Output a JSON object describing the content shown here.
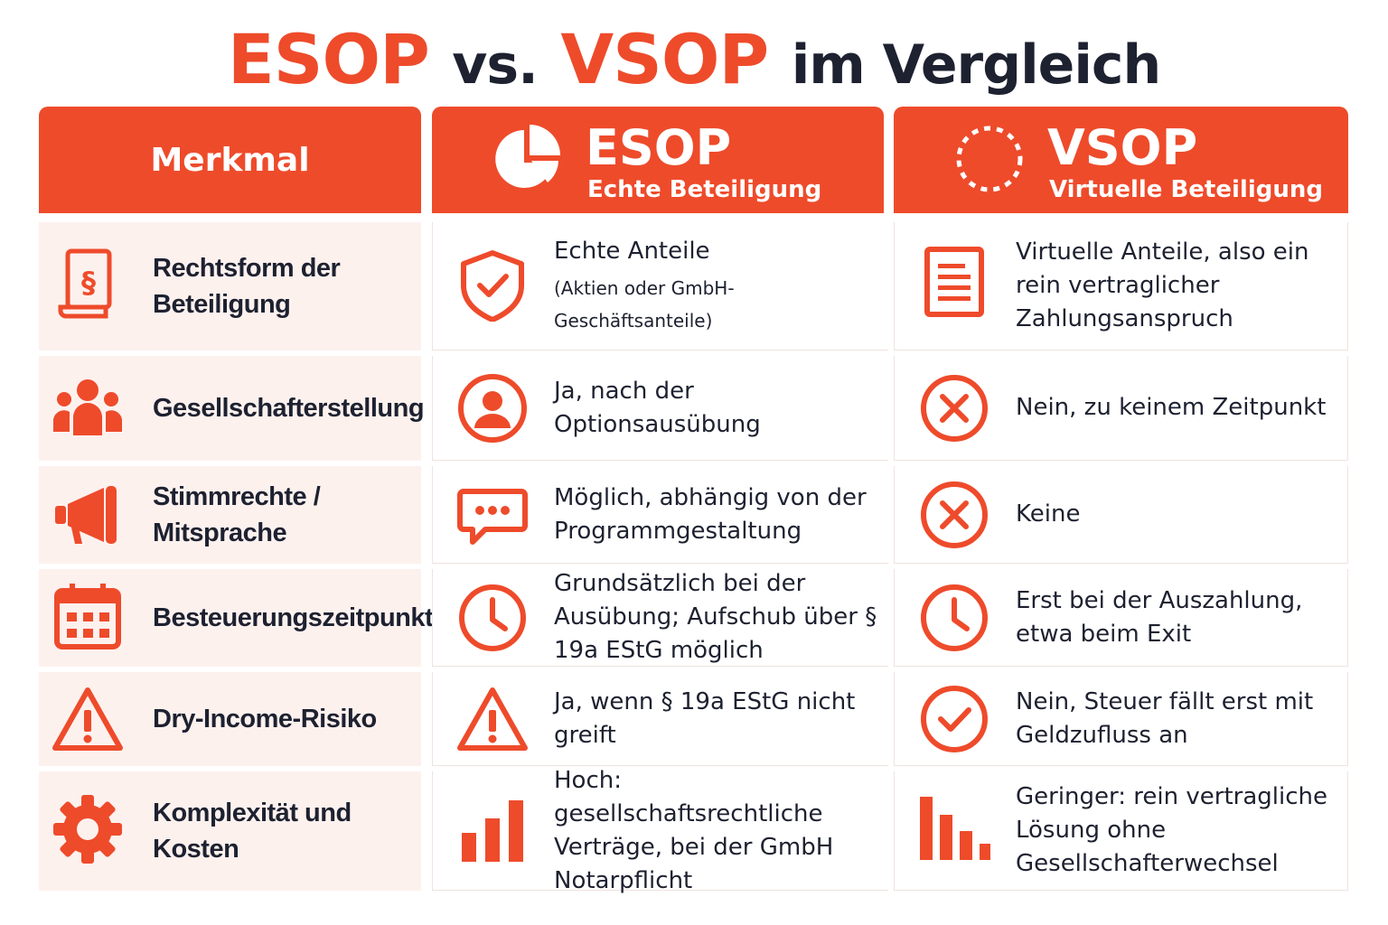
{
  "title": {
    "part1": "ESOP",
    "part2": "vs.",
    "part3": "VSOP",
    "part4": "im Vergleich"
  },
  "colors": {
    "accent": "#ee4b2b",
    "dark": "#1d2130",
    "row_tint": "#fdf1ee"
  },
  "header": {
    "merkmal": "Merkmal",
    "esop": {
      "name": "ESOP",
      "subtitle": "Echte Beteiligung",
      "icon": "pie-chart-icon"
    },
    "vsop": {
      "name": "VSOP",
      "subtitle": "Virtuelle Beteiligung",
      "icon": "dashed-circle-icon"
    }
  },
  "rows": [
    {
      "merkmal": "Rechtsform der Beteiligung",
      "merkmal_icon": "paragraph-document-icon",
      "esop": {
        "text": "Echte Anteile",
        "sub": "(Aktien oder GmbH-Geschäftsanteile)",
        "icon": "shield-check-icon"
      },
      "vsop": {
        "text": "Virtuelle Anteile, also ein rein vertraglicher Zahlungsanspruch",
        "icon": "document-lines-icon"
      }
    },
    {
      "merkmal": "Gesellschafterstellung",
      "merkmal_icon": "people-group-icon",
      "esop": {
        "text": "Ja, nach der Optionsausübung",
        "icon": "user-circle-icon"
      },
      "vsop": {
        "text": "Nein, zu keinem Zeitpunkt",
        "icon": "x-circle-icon"
      }
    },
    {
      "merkmal": "Stimmrechte / Mitsprache",
      "merkmal_icon": "megaphone-icon",
      "esop": {
        "text": "Möglich, abhängig von der Programmgestaltung",
        "icon": "chat-bubble-icon"
      },
      "vsop": {
        "text": "Keine",
        "icon": "x-circle-icon"
      }
    },
    {
      "merkmal": "Besteuerungszeitpunkt",
      "merkmal_icon": "calendar-icon",
      "esop": {
        "text": "Grundsätzlich bei der Ausübung; Aufschub über § 19a EStG möglich",
        "icon": "clock-icon"
      },
      "vsop": {
        "text": "Erst bei der Auszahlung, etwa beim Exit",
        "icon": "clock-icon"
      }
    },
    {
      "merkmal": "Dry-Income-Risiko",
      "merkmal_icon": "warning-triangle-icon",
      "esop": {
        "text": "Ja, wenn § 19a EStG nicht greift",
        "icon": "warning-triangle-icon"
      },
      "vsop": {
        "text": "Nein, Steuer fällt erst mit Geldzufluss an",
        "icon": "check-circle-icon"
      }
    },
    {
      "merkmal": "Komplexität und Kosten",
      "merkmal_icon": "gear-icon",
      "esop": {
        "text": "Hoch: gesellschaftsrechtliche Verträge, bei der GmbH Notarpflicht",
        "icon": "bars-rising-icon"
      },
      "vsop": {
        "text": "Geringer: rein vertragliche Lösung ohne Gesellschafterwechsel",
        "icon": "bars-falling-icon"
      }
    }
  ]
}
